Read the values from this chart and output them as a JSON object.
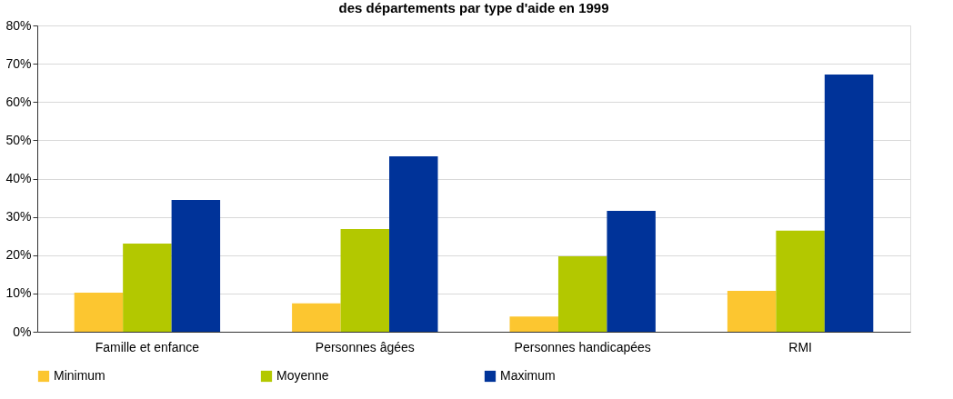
{
  "chart_data": {
    "type": "bar",
    "title": "des départements par type d'aide en 1999",
    "categories": [
      "Famille et enfance",
      "Personnes âgées",
      "Personnes handicapées",
      "RMI"
    ],
    "series": [
      {
        "name": "Minimum",
        "color": "#fcc630",
        "values": [
          10.2,
          7.4,
          4.0,
          10.7
        ]
      },
      {
        "name": "Moyenne",
        "color": "#b3c800",
        "values": [
          23.0,
          26.8,
          19.7,
          26.4
        ]
      },
      {
        "name": "Maximum",
        "color": "#003399",
        "values": [
          34.4,
          45.8,
          31.6,
          67.2
        ]
      }
    ],
    "ylim": [
      0,
      80
    ],
    "yticks": [
      {
        "value": 0,
        "label": "0%"
      },
      {
        "value": 10,
        "label": "10%"
      },
      {
        "value": 20,
        "label": "20%"
      },
      {
        "value": 30,
        "label": "30%"
      },
      {
        "value": 40,
        "label": "40%"
      },
      {
        "value": 50,
        "label": "50%"
      },
      {
        "value": 60,
        "label": "60%"
      },
      {
        "value": 70,
        "label": "70%"
      },
      {
        "value": 80,
        "label": "80%"
      }
    ],
    "grid": "y",
    "legend": "bottom"
  }
}
